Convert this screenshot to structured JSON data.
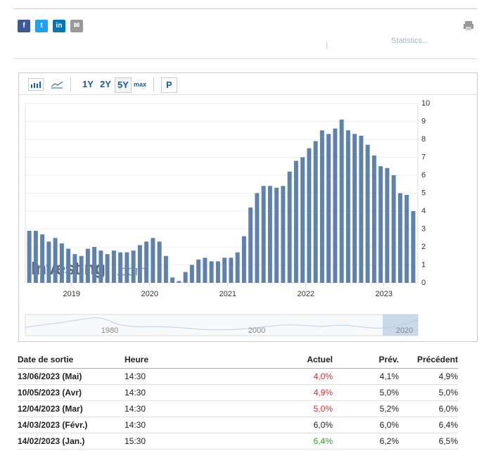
{
  "share": {
    "buttons": [
      "f",
      "t",
      "in",
      "✉"
    ]
  },
  "top_link": "Statistics...",
  "toolbar": {
    "ranges": [
      "1Y",
      "2Y",
      "5Y",
      "max"
    ],
    "extra": "P"
  },
  "chart_data": {
    "type": "bar",
    "color": "#5f82ad",
    "categories": [
      null,
      null,
      null,
      null,
      null,
      null,
      null,
      "2019",
      null,
      null,
      null,
      null,
      null,
      null,
      null,
      null,
      null,
      null,
      null,
      "2020",
      null,
      null,
      null,
      null,
      null,
      null,
      null,
      null,
      null,
      null,
      null,
      "2021",
      null,
      null,
      null,
      null,
      null,
      null,
      null,
      null,
      null,
      null,
      null,
      "2022",
      null,
      null,
      null,
      null,
      null,
      null,
      null,
      null,
      null,
      null,
      null,
      "2023",
      null,
      null,
      null,
      null
    ],
    "values": [
      2.9,
      2.9,
      2.7,
      2.3,
      2.5,
      2.2,
      1.9,
      1.6,
      1.5,
      1.9,
      2.0,
      1.8,
      1.6,
      1.8,
      1.7,
      1.7,
      1.8,
      2.1,
      2.3,
      2.5,
      2.3,
      1.5,
      0.3,
      0.1,
      0.6,
      1.0,
      1.3,
      1.4,
      1.2,
      1.2,
      1.4,
      1.4,
      1.7,
      2.6,
      4.2,
      5.0,
      5.4,
      5.4,
      5.3,
      5.4,
      6.2,
      6.8,
      7.0,
      7.5,
      7.9,
      8.5,
      8.3,
      8.6,
      9.1,
      8.5,
      8.3,
      8.2,
      7.7,
      7.1,
      6.5,
      6.4,
      6.0,
      5.0,
      4.9,
      4.0
    ],
    "ylim": [
      0,
      10
    ],
    "yticks": [
      0,
      1,
      2,
      3,
      4,
      5,
      6,
      7,
      8,
      9,
      10
    ],
    "grid": true,
    "watermark": [
      "Investing",
      ".com"
    ],
    "navigator_labels": [
      "1980",
      "2000",
      "2020"
    ]
  },
  "table": {
    "header": [
      "Date de sortie",
      "Heure",
      "Actuel",
      "Prév.",
      "Précédent"
    ],
    "rows": [
      [
        "13/06/2023 (Mai)",
        "14:30",
        "4,0%",
        "4,1%",
        "4,9%"
      ],
      [
        "10/05/2023 (Avr)",
        "14:30",
        "4,9%",
        "5,0%",
        "5,0%"
      ],
      [
        "12/04/2023 (Mar)",
        "14:30",
        "5,0%",
        "5,2%",
        "6,0%"
      ],
      [
        "14/03/2023 (Févr.)",
        "14:30",
        "6,0%",
        "6,0%",
        "6,4%"
      ],
      [
        "14/02/2023 (Jan.)",
        "15:30",
        "6,4%",
        "6,2%",
        "6,5%"
      ]
    ],
    "actual_colors": [
      "#e0262b",
      "#e0262b",
      "#e0262b",
      "#222222",
      "#2e9e2e"
    ]
  }
}
